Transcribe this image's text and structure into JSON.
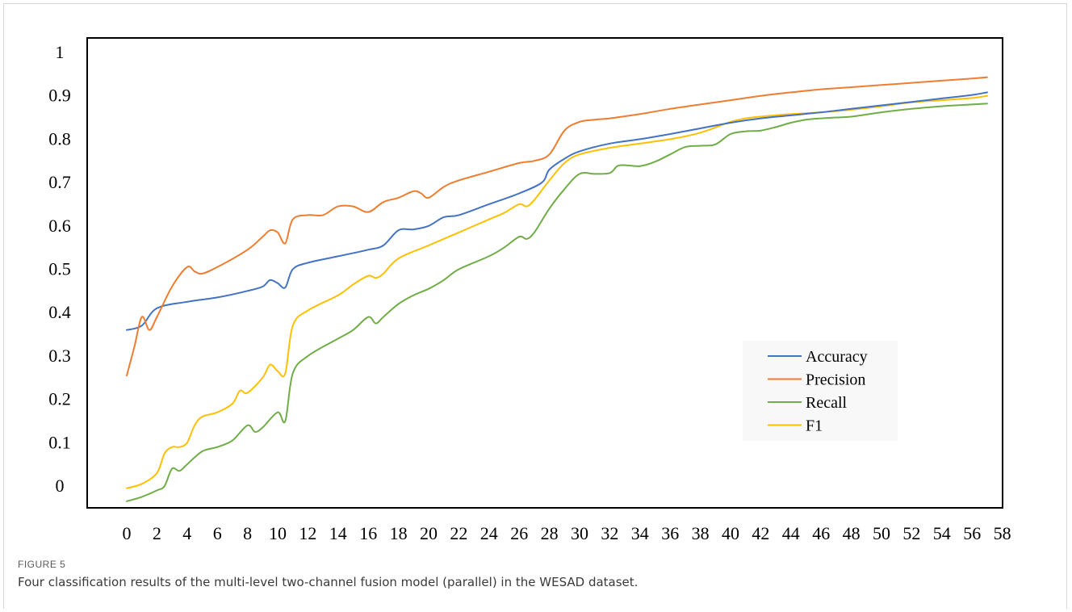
{
  "figure": {
    "label": "FIGURE 5",
    "caption": "Four classification results of the multi-level two-channel fusion model (parallel) in the WESAD dataset."
  },
  "chart_data": {
    "type": "line",
    "title": "",
    "xlabel": "",
    "ylabel": "",
    "xlim": [
      0,
      58
    ],
    "ylim": [
      0,
      1
    ],
    "x_ticks": [
      0,
      2,
      4,
      6,
      8,
      10,
      12,
      14,
      16,
      18,
      20,
      22,
      24,
      26,
      28,
      30,
      32,
      34,
      36,
      38,
      40,
      42,
      44,
      46,
      48,
      50,
      52,
      54,
      56,
      58
    ],
    "y_ticks": [
      0,
      0.1,
      0.2,
      0.3,
      0.4,
      0.5,
      0.6,
      0.7,
      0.8,
      0.9,
      1
    ],
    "y_tick_labels": [
      "0",
      "0.1",
      "0.2",
      "0.3",
      "0.4",
      "0.5",
      "0.6",
      "0.7",
      "0.8",
      "0.9",
      "1"
    ],
    "grid": false,
    "legend": {
      "position": "lower-right"
    },
    "series": [
      {
        "name": "Accuracy",
        "color": "#4472C4",
        "points": [
          [
            0,
            0.36
          ],
          [
            1,
            0.37
          ],
          [
            2,
            0.41
          ],
          [
            4,
            0.425
          ],
          [
            6,
            0.435
          ],
          [
            8,
            0.45
          ],
          [
            9,
            0.46
          ],
          [
            9.5,
            0.475
          ],
          [
            10,
            0.468
          ],
          [
            10.5,
            0.458
          ],
          [
            11,
            0.5
          ],
          [
            12,
            0.515
          ],
          [
            14,
            0.53
          ],
          [
            16,
            0.545
          ],
          [
            17,
            0.555
          ],
          [
            18,
            0.59
          ],
          [
            19,
            0.592
          ],
          [
            20,
            0.6
          ],
          [
            21,
            0.62
          ],
          [
            22,
            0.625
          ],
          [
            24,
            0.65
          ],
          [
            26,
            0.675
          ],
          [
            27.5,
            0.7
          ],
          [
            28,
            0.73
          ],
          [
            29,
            0.755
          ],
          [
            30,
            0.772
          ],
          [
            32,
            0.79
          ],
          [
            34,
            0.8
          ],
          [
            36,
            0.812
          ],
          [
            38,
            0.825
          ],
          [
            40,
            0.838
          ],
          [
            42,
            0.848
          ],
          [
            44,
            0.855
          ],
          [
            46,
            0.862
          ],
          [
            48,
            0.87
          ],
          [
            50,
            0.878
          ],
          [
            52,
            0.886
          ],
          [
            54,
            0.894
          ],
          [
            56,
            0.902
          ],
          [
            57,
            0.908
          ]
        ]
      },
      {
        "name": "Precision",
        "color": "#ED7D31",
        "points": [
          [
            0,
            0.255
          ],
          [
            0.5,
            0.32
          ],
          [
            1,
            0.39
          ],
          [
            1.5,
            0.36
          ],
          [
            2,
            0.39
          ],
          [
            3,
            0.46
          ],
          [
            4,
            0.505
          ],
          [
            4.5,
            0.495
          ],
          [
            5,
            0.49
          ],
          [
            6,
            0.505
          ],
          [
            8,
            0.545
          ],
          [
            9,
            0.575
          ],
          [
            9.5,
            0.59
          ],
          [
            10,
            0.585
          ],
          [
            10.5,
            0.56
          ],
          [
            11,
            0.615
          ],
          [
            12,
            0.625
          ],
          [
            13,
            0.625
          ],
          [
            14,
            0.645
          ],
          [
            15,
            0.645
          ],
          [
            16,
            0.632
          ],
          [
            17,
            0.655
          ],
          [
            18,
            0.665
          ],
          [
            19,
            0.68
          ],
          [
            19.5,
            0.675
          ],
          [
            20,
            0.665
          ],
          [
            21,
            0.69
          ],
          [
            22,
            0.705
          ],
          [
            24,
            0.725
          ],
          [
            26,
            0.745
          ],
          [
            27,
            0.75
          ],
          [
            28,
            0.765
          ],
          [
            29,
            0.82
          ],
          [
            30,
            0.84
          ],
          [
            31,
            0.845
          ],
          [
            32,
            0.848
          ],
          [
            34,
            0.858
          ],
          [
            36,
            0.87
          ],
          [
            38,
            0.88
          ],
          [
            40,
            0.89
          ],
          [
            42,
            0.9
          ],
          [
            44,
            0.908
          ],
          [
            46,
            0.915
          ],
          [
            48,
            0.92
          ],
          [
            50,
            0.925
          ],
          [
            52,
            0.93
          ],
          [
            54,
            0.935
          ],
          [
            56,
            0.94
          ],
          [
            57,
            0.943
          ]
        ]
      },
      {
        "name": "Recall",
        "color": "#70AD47",
        "points": [
          [
            0,
            -0.035
          ],
          [
            1,
            -0.025
          ],
          [
            2,
            -0.01
          ],
          [
            2.5,
            0.0
          ],
          [
            3,
            0.04
          ],
          [
            3.5,
            0.035
          ],
          [
            4,
            0.05
          ],
          [
            5,
            0.08
          ],
          [
            6,
            0.09
          ],
          [
            7,
            0.105
          ],
          [
            8,
            0.14
          ],
          [
            8.5,
            0.125
          ],
          [
            9,
            0.135
          ],
          [
            10,
            0.17
          ],
          [
            10.5,
            0.15
          ],
          [
            11,
            0.26
          ],
          [
            12,
            0.3
          ],
          [
            14,
            0.34
          ],
          [
            15,
            0.36
          ],
          [
            16,
            0.39
          ],
          [
            16.5,
            0.375
          ],
          [
            17,
            0.39
          ],
          [
            18,
            0.42
          ],
          [
            19,
            0.44
          ],
          [
            20,
            0.455
          ],
          [
            21,
            0.475
          ],
          [
            22,
            0.5
          ],
          [
            24,
            0.53
          ],
          [
            25,
            0.55
          ],
          [
            26,
            0.575
          ],
          [
            26.5,
            0.57
          ],
          [
            27,
            0.585
          ],
          [
            28,
            0.64
          ],
          [
            29,
            0.685
          ],
          [
            30,
            0.72
          ],
          [
            31,
            0.72
          ],
          [
            32,
            0.722
          ],
          [
            32.5,
            0.738
          ],
          [
            33,
            0.74
          ],
          [
            34,
            0.738
          ],
          [
            35,
            0.748
          ],
          [
            36,
            0.765
          ],
          [
            37,
            0.782
          ],
          [
            38,
            0.785
          ],
          [
            39,
            0.788
          ],
          [
            40,
            0.812
          ],
          [
            41,
            0.818
          ],
          [
            42,
            0.82
          ],
          [
            43,
            0.828
          ],
          [
            44,
            0.838
          ],
          [
            45,
            0.845
          ],
          [
            46,
            0.848
          ],
          [
            47,
            0.85
          ],
          [
            48,
            0.852
          ],
          [
            50,
            0.862
          ],
          [
            52,
            0.87
          ],
          [
            54,
            0.876
          ],
          [
            56,
            0.88
          ],
          [
            57,
            0.882
          ]
        ]
      },
      {
        "name": "F1",
        "color": "#FFC000",
        "points": [
          [
            0,
            -0.005
          ],
          [
            1,
            0.005
          ],
          [
            2,
            0.03
          ],
          [
            2.5,
            0.075
          ],
          [
            3,
            0.09
          ],
          [
            3.5,
            0.09
          ],
          [
            4,
            0.1
          ],
          [
            4.5,
            0.14
          ],
          [
            5,
            0.16
          ],
          [
            6,
            0.17
          ],
          [
            7,
            0.19
          ],
          [
            7.5,
            0.22
          ],
          [
            8,
            0.215
          ],
          [
            9,
            0.25
          ],
          [
            9.5,
            0.28
          ],
          [
            10,
            0.265
          ],
          [
            10.5,
            0.26
          ],
          [
            11,
            0.37
          ],
          [
            12,
            0.405
          ],
          [
            14,
            0.44
          ],
          [
            15,
            0.465
          ],
          [
            16,
            0.485
          ],
          [
            16.5,
            0.48
          ],
          [
            17,
            0.49
          ],
          [
            18,
            0.525
          ],
          [
            20,
            0.555
          ],
          [
            22,
            0.585
          ],
          [
            24,
            0.615
          ],
          [
            25,
            0.63
          ],
          [
            26,
            0.65
          ],
          [
            26.5,
            0.645
          ],
          [
            27,
            0.66
          ],
          [
            28,
            0.705
          ],
          [
            29,
            0.745
          ],
          [
            30,
            0.765
          ],
          [
            32,
            0.78
          ],
          [
            34,
            0.79
          ],
          [
            36,
            0.8
          ],
          [
            38,
            0.815
          ],
          [
            40,
            0.84
          ],
          [
            41,
            0.848
          ],
          [
            42,
            0.852
          ],
          [
            44,
            0.858
          ],
          [
            46,
            0.862
          ],
          [
            48,
            0.868
          ],
          [
            50,
            0.876
          ],
          [
            52,
            0.885
          ],
          [
            54,
            0.89
          ],
          [
            56,
            0.895
          ],
          [
            57,
            0.9
          ]
        ]
      }
    ]
  }
}
